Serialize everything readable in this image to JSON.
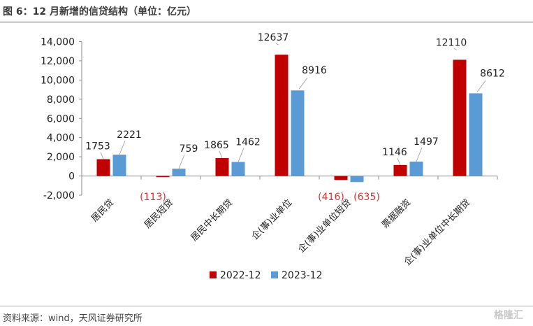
{
  "header": {
    "title": "图 6：12 月新增的信贷结构（单位：亿元）"
  },
  "footer": {
    "source": "资料来源：wind，天风证券研究所",
    "watermark": "格隆汇"
  },
  "chart_data": {
    "type": "bar",
    "categories": [
      "居民贷",
      "居民短贷",
      "居民中长期贷",
      "企(事)业单位",
      "企(事)业单位短贷",
      "票据融资",
      "企(事)业单位中长期贷"
    ],
    "series": [
      {
        "name": "2022-12",
        "color": "#c00000",
        "values": [
          1753,
          -113,
          1865,
          12637,
          -416,
          1146,
          12110
        ],
        "labels": [
          "1753",
          "(113)",
          "1865",
          "12637",
          "(416)",
          "1146",
          "12110"
        ]
      },
      {
        "name": "2023-12",
        "color": "#5b9bd5",
        "values": [
          2221,
          759,
          1462,
          8916,
          -635,
          1497,
          8612
        ],
        "labels": [
          "2221",
          "759",
          "1462",
          "8916",
          "(635)",
          "1497",
          "8612"
        ]
      }
    ],
    "ylim": [
      -2000,
      14000
    ],
    "yticks": [
      -2000,
      0,
      2000,
      4000,
      6000,
      8000,
      10000,
      12000,
      14000
    ],
    "ytick_labels": [
      "-2,000",
      "0",
      "2,000",
      "4,000",
      "6,000",
      "8,000",
      "10,000",
      "12,000",
      "14,000"
    ],
    "negative_label_color": "#e03030",
    "legend_position": "bottom",
    "grid": false
  }
}
